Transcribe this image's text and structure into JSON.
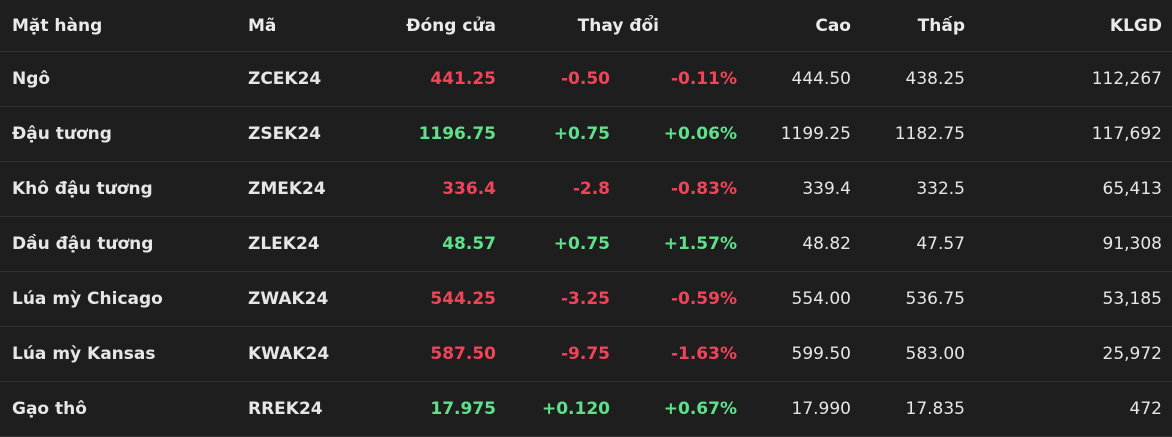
{
  "table": {
    "header": [
      "Mặt hàng",
      "Mã",
      "Đóng cửa",
      "Thay đổi",
      "Cao",
      "Thấp",
      "KLGD"
    ],
    "rows": [
      [
        "Ngô",
        "ZCEK24",
        "441.25",
        "-0.50",
        "-0.11%",
        "444.50",
        "438.25",
        "112,267"
      ],
      [
        "Đậu tương",
        "ZSEK24",
        "1196.75",
        "+0.75",
        "+0.06%",
        "1199.25",
        "1182.75",
        "117,692"
      ],
      [
        "Khô đậu tương",
        "ZMEK24",
        "336.4",
        "-2.8",
        "-0.83%",
        "339.4",
        "332.5",
        "65,413"
      ],
      [
        "Dầu đậu tương",
        "ZLEK24",
        "48.57",
        "+0.75",
        "+1.57%",
        "48.82",
        "47.57",
        "91,308"
      ],
      [
        "Lúa mỳ Chicago",
        "ZWAK24",
        "544.25",
        "-3.25",
        "-0.59%",
        "554.00",
        "536.75",
        "53,185"
      ],
      [
        "Lúa mỳ Kansas",
        "KWAK24",
        "587.50",
        "-9.75",
        "-1.63%",
        "599.50",
        "583.00",
        "25,972"
      ],
      [
        "Gạo thô",
        "RREK24",
        "17.975",
        "+0.120",
        "+0.67%",
        "17.990",
        "17.835",
        "472"
      ]
    ]
  }
}
